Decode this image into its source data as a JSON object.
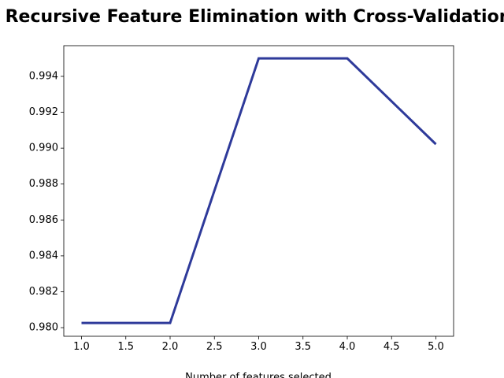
{
  "chart_data": {
    "type": "line",
    "title": "Recursive Feature Elimination with Cross-Validation",
    "xlabel": "Number of features selected",
    "x": [
      1,
      2,
      3,
      4,
      5
    ],
    "series": [
      {
        "color": "#2e3a9a",
        "values": [
          0.98026,
          0.98026,
          0.995,
          0.995,
          0.99022
        ]
      }
    ],
    "xlim": [
      0.8,
      5.2
    ],
    "ylim": [
      0.97952,
      0.99571
    ],
    "xticks": [
      {
        "value": 1,
        "label": "1.0"
      },
      {
        "value": 1.5,
        "label": "1.5"
      },
      {
        "value": 2,
        "label": "2.0"
      },
      {
        "value": 2.5,
        "label": "2.5"
      },
      {
        "value": 3,
        "label": "3.0"
      },
      {
        "value": 3.5,
        "label": "3.5"
      },
      {
        "value": 4,
        "label": "4.0"
      },
      {
        "value": 4.5,
        "label": "4.5"
      },
      {
        "value": 5,
        "label": "5.0"
      }
    ],
    "yticks": [
      {
        "value": 0.98,
        "label": "0.980"
      },
      {
        "value": 0.982,
        "label": "0.982"
      },
      {
        "value": 0.984,
        "label": "0.984"
      },
      {
        "value": 0.986,
        "label": "0.986"
      },
      {
        "value": 0.988,
        "label": "0.988"
      },
      {
        "value": 0.99,
        "label": "0.990"
      },
      {
        "value": 0.992,
        "label": "0.992"
      },
      {
        "value": 0.994,
        "label": "0.994"
      }
    ],
    "grid": false
  }
}
